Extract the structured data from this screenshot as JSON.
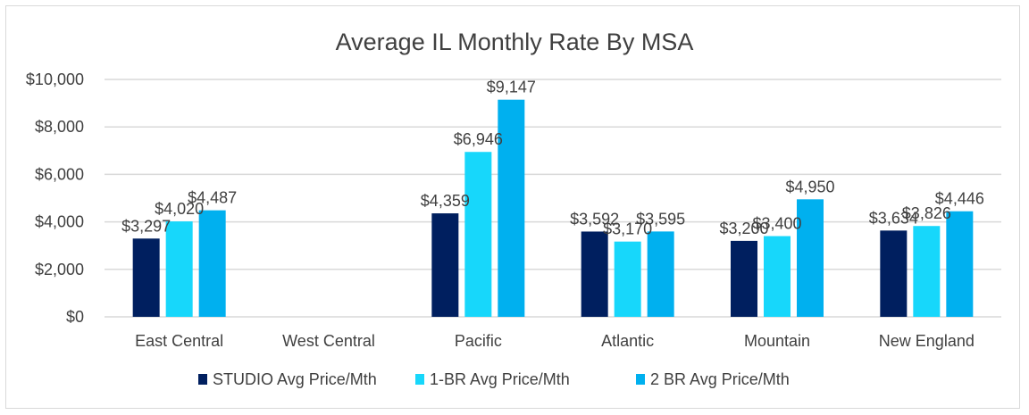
{
  "chart_data": {
    "type": "bar",
    "title": "Average IL Monthly Rate By MSA",
    "xlabel": "",
    "ylabel": "",
    "categories": [
      "East Central",
      "West Central",
      "Pacific",
      "Atlantic",
      "Mountain",
      "New England"
    ],
    "series": [
      {
        "name": "STUDIO Avg Price/Mth",
        "color": "#001f5f",
        "values": [
          3297,
          null,
          4359,
          3592,
          3200,
          3634
        ]
      },
      {
        "name": "1-BR Avg Price/Mth",
        "color": "#17d7fb",
        "values": [
          4020,
          null,
          6946,
          3170,
          3400,
          3826
        ]
      },
      {
        "name": "2 BR Avg Price/Mth",
        "color": "#00b0ef",
        "values": [
          4487,
          null,
          9147,
          3595,
          4950,
          4446
        ]
      }
    ],
    "ylim": [
      0,
      10000
    ],
    "yticks": [
      0,
      2000,
      4000,
      6000,
      8000,
      10000
    ],
    "ytick_labels": [
      "$0",
      "$2,000",
      "$4,000",
      "$6,000",
      "$8,000",
      "$10,000"
    ],
    "data_labels": true,
    "grid": true,
    "legend": "bottom"
  }
}
